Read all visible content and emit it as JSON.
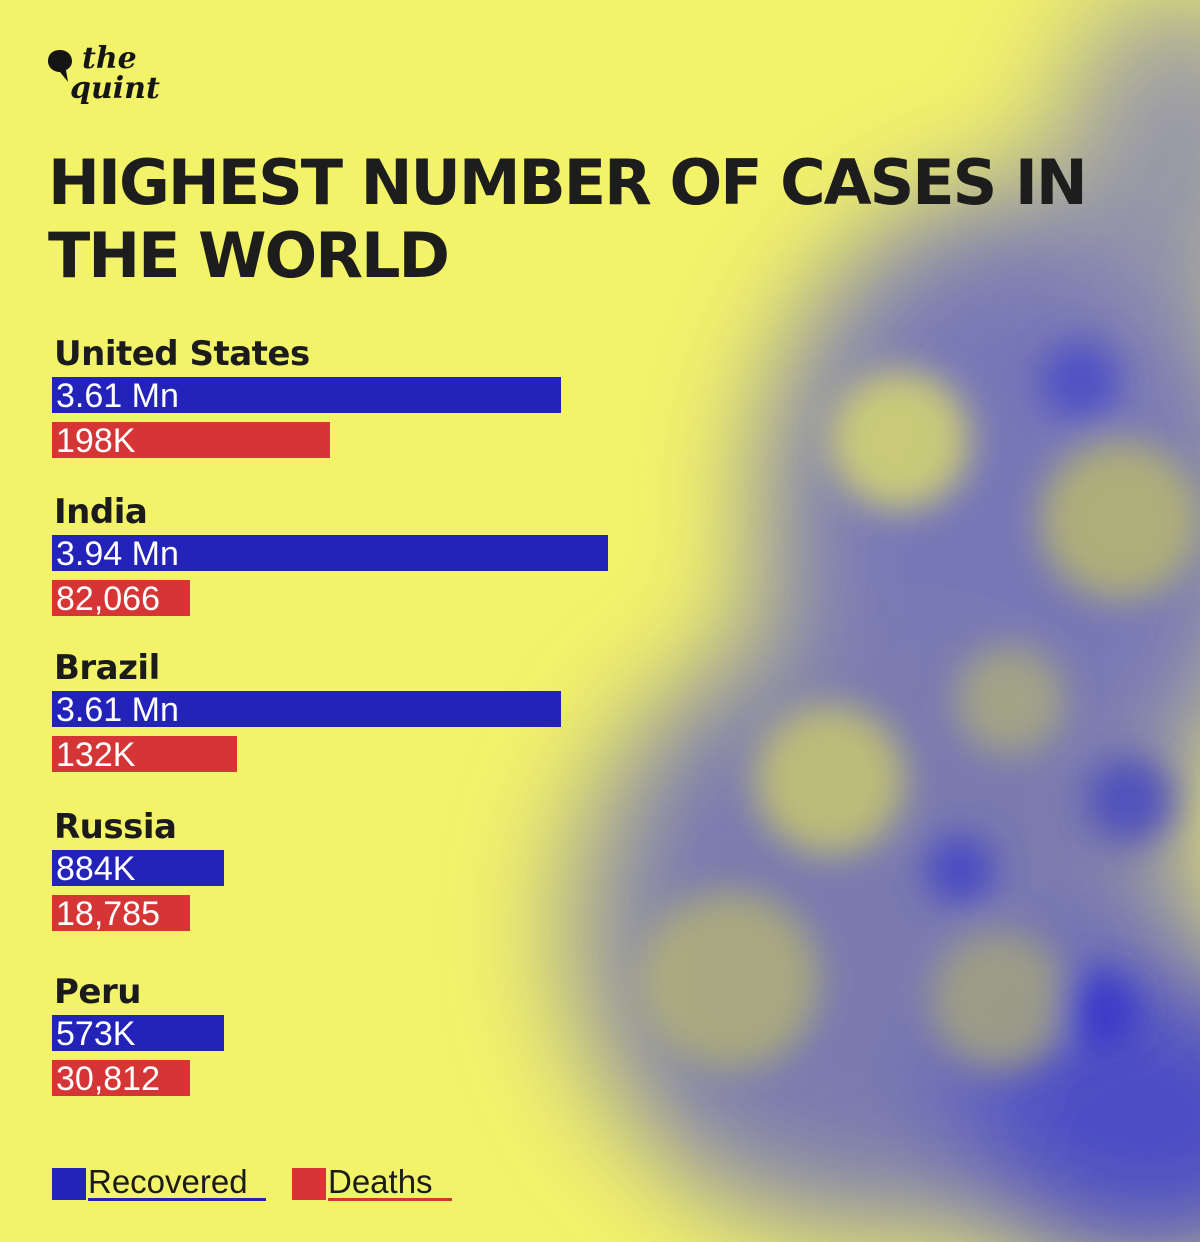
{
  "brand": {
    "line1": "the",
    "line2": "quint",
    "logo_icon": "speech-bubble-icon"
  },
  "title": "HIGHEST NUMBER OF CASES IN THE WORLD",
  "colors": {
    "background": "#f3f36a",
    "recovered": "#2323b9",
    "deaths": "#d63535",
    "text": "#1d1d1d"
  },
  "chart_data": {
    "type": "bar",
    "orientation": "horizontal",
    "title": "HIGHEST NUMBER OF CASES IN THE WORLD",
    "categories": [
      "United States",
      "India",
      "Brazil",
      "Russia",
      "Peru"
    ],
    "series": [
      {
        "name": "Recovered",
        "values": [
          3610000,
          3940000,
          3610000,
          884000,
          573000
        ],
        "labels": [
          "3.61 Mn",
          "3.94 Mn",
          "3.61 Mn",
          "884K",
          "573K"
        ]
      },
      {
        "name": "Deaths",
        "values": [
          198000,
          82066,
          132000,
          18785,
          30812
        ],
        "labels": [
          "198K",
          "82,066",
          "132K",
          "18,785",
          "30,812"
        ]
      }
    ],
    "legend_position": "bottom-left",
    "grid": false,
    "axes_visible": false
  }
}
